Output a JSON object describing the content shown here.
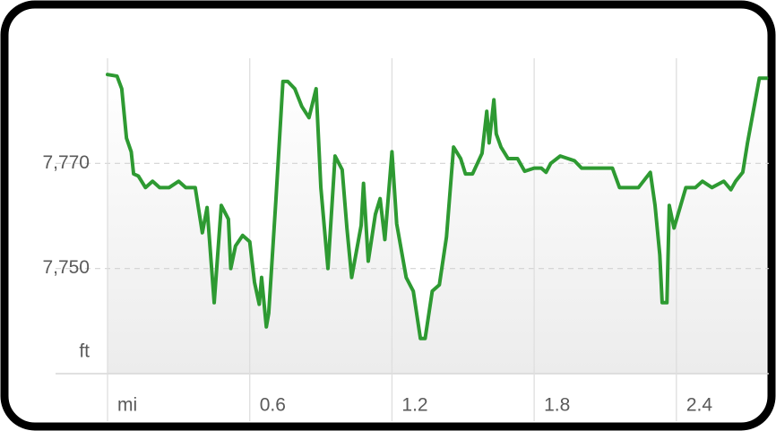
{
  "chart_data": {
    "type": "line",
    "color": "#2e9a32",
    "grid": true,
    "xlim": [
      0,
      2.79
    ],
    "ylim": [
      7730,
      7790
    ],
    "xticks": [
      {
        "value": 0,
        "label": "mi"
      },
      0.6,
      1.2,
      1.8,
      2.4
    ],
    "yticks": [
      {
        "value": 7730,
        "label": "ft"
      },
      {
        "value": 7750,
        "label": "7,750"
      },
      {
        "value": 7770,
        "label": "7,770"
      }
    ],
    "x": [
      0,
      0.04,
      0.06,
      0.08,
      0.1,
      0.11,
      0.13,
      0.16,
      0.19,
      0.22,
      0.26,
      0.3,
      0.33,
      0.37,
      0.4,
      0.42,
      0.45,
      0.48,
      0.51,
      0.52,
      0.54,
      0.57,
      0.6,
      0.62,
      0.64,
      0.65,
      0.67,
      0.68,
      0.71,
      0.74,
      0.76,
      0.79,
      0.82,
      0.85,
      0.88,
      0.9,
      0.93,
      0.96,
      0.99,
      1.01,
      1.03,
      1.07,
      1.08,
      1.1,
      1.13,
      1.15,
      1.17,
      1.2,
      1.22,
      1.26,
      1.29,
      1.32,
      1.34,
      1.37,
      1.4,
      1.43,
      1.46,
      1.49,
      1.51,
      1.54,
      1.58,
      1.6,
      1.61,
      1.63,
      1.64,
      1.66,
      1.69,
      1.73,
      1.76,
      1.8,
      1.83,
      1.85,
      1.87,
      1.91,
      1.97,
      2.0,
      2.06,
      2.13,
      2.16,
      2.24,
      2.29,
      2.31,
      2.33,
      2.34,
      2.36,
      2.37,
      2.39,
      2.44,
      2.48,
      2.51,
      2.55,
      2.6,
      2.63,
      2.65,
      2.68,
      2.7,
      2.75,
      2.78
    ],
    "values": [
      7786.9,
      7786.6,
      7784.2,
      7774.8,
      7772.2,
      7768,
      7767.6,
      7765.4,
      7766.6,
      7765.4,
      7765.4,
      7766.6,
      7765.4,
      7765.4,
      7756.8,
      7761.6,
      7743.5,
      7762,
      7759.4,
      7750,
      7754.3,
      7756.3,
      7755.1,
      7747.4,
      7743.2,
      7748.3,
      7738.9,
      7741.5,
      7762.8,
      7785.6,
      7785.6,
      7784.2,
      7780.8,
      7778.7,
      7784.2,
      7765.4,
      7750,
      7771.4,
      7768.8,
      7757.7,
      7748.3,
      7758.2,
      7766.2,
      7751.4,
      7760.3,
      7763.3,
      7755.5,
      7772.2,
      7758.5,
      7748.3,
      7745.7,
      7736.7,
      7736.7,
      7745.7,
      7746.9,
      7756,
      7773.1,
      7770.9,
      7768,
      7768,
      7771.9,
      7779.9,
      7773.9,
      7782.1,
      7775.6,
      7773.1,
      7770.9,
      7770.9,
      7768.5,
      7769.1,
      7769.1,
      7768.3,
      7770,
      7771.4,
      7770.5,
      7769.1,
      7769.1,
      7769.1,
      7765.4,
      7765.4,
      7768.3,
      7762,
      7752.6,
      7743.5,
      7743.5,
      7762,
      7757.7,
      7765.4,
      7765.4,
      7766.6,
      7765.4,
      7766.6,
      7765,
      7766.6,
      7768.3,
      7773.9,
      7786.2,
      7786.2
    ]
  }
}
